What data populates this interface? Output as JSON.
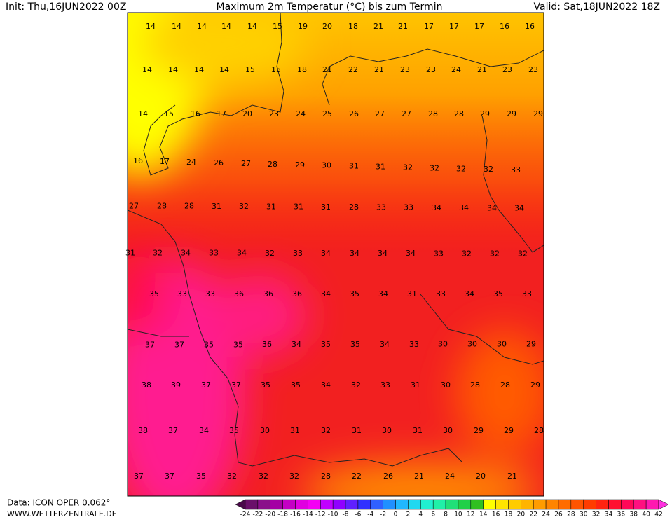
{
  "header": {
    "init": "Init: Thu,16JUN2022 00Z",
    "title": "Maximum 2m Temperatur (°C) bis zum Termin",
    "valid": "Valid: Sat,18JUN2022 18Z"
  },
  "map": {
    "rows": [
      [
        14,
        14,
        14,
        14,
        14,
        15,
        19,
        20,
        18,
        21,
        21,
        17,
        17,
        17,
        16,
        16
      ],
      [
        14,
        14,
        14,
        14,
        15,
        15,
        18,
        21,
        22,
        21,
        23,
        23,
        24,
        21,
        23,
        23
      ],
      [
        14,
        15,
        16,
        17,
        20,
        23,
        24,
        25,
        26,
        27,
        27,
        28,
        28,
        29,
        29,
        29
      ],
      [
        16,
        17,
        24,
        26,
        27,
        28,
        29,
        30,
        31,
        31,
        32,
        32,
        32,
        32,
        33
      ],
      [
        27,
        28,
        28,
        31,
        32,
        31,
        31,
        31,
        28,
        33,
        33,
        34,
        34,
        34,
        34
      ],
      [
        31,
        32,
        34,
        33,
        34,
        32,
        33,
        34,
        34,
        34,
        34,
        33,
        32,
        32,
        32
      ],
      [
        35,
        33,
        33,
        36,
        36,
        36,
        34,
        35,
        34,
        31,
        33,
        34,
        35,
        33
      ],
      [
        37,
        37,
        35,
        35,
        36,
        34,
        35,
        35,
        34,
        33,
        30,
        30,
        30,
        29
      ],
      [
        38,
        39,
        37,
        37,
        35,
        35,
        34,
        32,
        33,
        31,
        30,
        28,
        28,
        29
      ],
      [
        38,
        37,
        34,
        35,
        30,
        31,
        32,
        31,
        30,
        31,
        30,
        29,
        29,
        28
      ],
      [
        37,
        37,
        35,
        32,
        32,
        32,
        28,
        22,
        26,
        21,
        24,
        20,
        21
      ]
    ]
  },
  "colorbar": {
    "levels": [
      -24,
      -22,
      -20,
      -18,
      -16,
      -14,
      -12,
      -10,
      -8,
      -6,
      -4,
      -2,
      0,
      2,
      4,
      6,
      8,
      10,
      12,
      14,
      16,
      18,
      20,
      22,
      24,
      26,
      28,
      30,
      32,
      34,
      36,
      38,
      40,
      42
    ],
    "colors": [
      "#4a0a4a",
      "#6a106a",
      "#8a108a",
      "#a400a4",
      "#c400c4",
      "#e000e0",
      "#f400f4",
      "#c000ff",
      "#9000ff",
      "#6020ff",
      "#3030ff",
      "#3060ff",
      "#2090ff",
      "#20b8ff",
      "#20d8f0",
      "#20f0d0",
      "#20f0a8",
      "#20e078",
      "#20d048",
      "#30c020",
      "#ffff00",
      "#ffe400",
      "#ffcc00",
      "#ffb400",
      "#ff9c00",
      "#ff8400",
      "#ff6c00",
      "#ff5400",
      "#ff3c00",
      "#ff2410",
      "#ff1030",
      "#ff0858",
      "#ff1080",
      "#ff18b0",
      "#ff30e0"
    ]
  },
  "footer": {
    "data": "Data: ICON OPER 0.062°",
    "site": "WWW.WETTERZENTRALE.DE"
  }
}
